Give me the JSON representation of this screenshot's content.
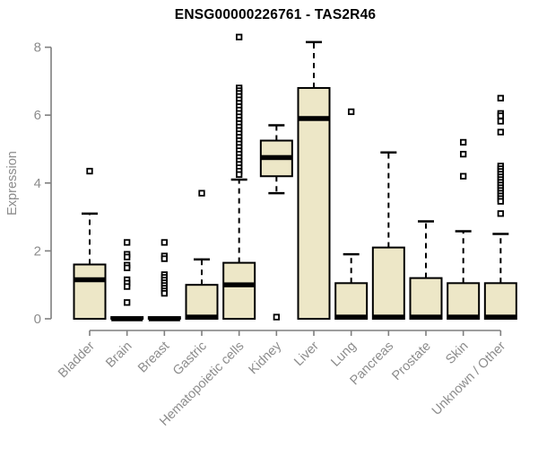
{
  "title": "ENSG00000226761 - TAS2R46",
  "colors": {
    "background": "#ffffff",
    "box_fill": "#ede7c7",
    "box_stroke": "#000000",
    "median": "#000000",
    "whisker": "#000000",
    "outlier_fill": "#ffffff",
    "outlier_stroke": "#000000",
    "axis": "#7f7f7f",
    "tick_label": "#8c8c8c",
    "title_color": "#000000"
  },
  "chart_data": {
    "type": "boxplot",
    "title": "ENSG00000226761 - TAS2R46",
    "xlabel": "",
    "ylabel": "Expression",
    "ylim": [
      0,
      8.5
    ],
    "yticks": [
      0,
      2,
      4,
      6,
      8
    ],
    "grid": false,
    "categories": [
      "Bladder",
      "Brain",
      "Breast",
      "Gastric",
      "Hematopoietic cells",
      "Kidney",
      "Liver",
      "Lung",
      "Pancreas",
      "Prostate",
      "Skin",
      "Unknown / Other"
    ],
    "series": [
      {
        "name": "Bladder",
        "q1": 0,
        "median": 1.15,
        "q3": 1.6,
        "whisker_low": 0,
        "whisker_high": 3.1,
        "outliers": [
          4.35
        ]
      },
      {
        "name": "Brain",
        "q1": 0,
        "median": 0,
        "q3": 0.05,
        "whisker_low": 0,
        "whisker_high": 0.05,
        "outliers": [
          2.25,
          1.9,
          1.82,
          1.58,
          1.5,
          1.15,
          1.05,
          0.95,
          0.48
        ]
      },
      {
        "name": "Breast",
        "q1": 0,
        "median": 0,
        "q3": 0.05,
        "whisker_low": 0,
        "whisker_high": 0.05,
        "outliers": [
          2.25,
          1.85,
          1.77,
          1.3,
          1.22,
          1.14,
          1.06,
          0.98,
          0.9,
          0.82,
          0.75
        ]
      },
      {
        "name": "Gastric",
        "q1": 0,
        "median": 0.05,
        "q3": 1.0,
        "whisker_low": 0,
        "whisker_high": 1.75,
        "outliers": [
          3.7
        ]
      },
      {
        "name": "Hematopoietic cells",
        "q1": 0,
        "median": 1.0,
        "q3": 1.65,
        "whisker_low": 0,
        "whisker_high": 4.1,
        "outliers": [
          8.3,
          6.8,
          6.72,
          6.64,
          6.55,
          6.45,
          6.35,
          6.25,
          6.15,
          6.05,
          5.95,
          5.85,
          5.75,
          5.65,
          5.55,
          5.45,
          5.35,
          5.25,
          5.15,
          5.05,
          4.95,
          4.85,
          4.75,
          4.65,
          4.55,
          4.45,
          4.35,
          4.25
        ]
      },
      {
        "name": "Kidney",
        "q1": 4.2,
        "median": 4.75,
        "q3": 5.25,
        "whisker_low": 3.7,
        "whisker_high": 5.7,
        "outliers": [
          0.05
        ]
      },
      {
        "name": "Liver",
        "q1": 0,
        "median": 5.9,
        "q3": 6.8,
        "whisker_low": 0,
        "whisker_high": 8.15,
        "outliers": []
      },
      {
        "name": "Lung",
        "q1": 0,
        "median": 0.05,
        "q3": 1.05,
        "whisker_low": 0,
        "whisker_high": 1.9,
        "outliers": [
          6.1
        ]
      },
      {
        "name": "Pancreas",
        "q1": 0,
        "median": 0.05,
        "q3": 2.1,
        "whisker_low": 0,
        "whisker_high": 4.9,
        "outliers": []
      },
      {
        "name": "Prostate",
        "q1": 0,
        "median": 0.05,
        "q3": 1.2,
        "whisker_low": 0,
        "whisker_high": 2.87,
        "outliers": []
      },
      {
        "name": "Skin",
        "q1": 0,
        "median": 0.05,
        "q3": 1.05,
        "whisker_low": 0,
        "whisker_high": 2.58,
        "outliers": [
          5.2,
          4.85,
          4.2
        ]
      },
      {
        "name": "Unknown / Other",
        "q1": 0,
        "median": 0.05,
        "q3": 1.05,
        "whisker_low": 0,
        "whisker_high": 2.5,
        "outliers": [
          6.5,
          6.05,
          5.98,
          5.82,
          5.5,
          4.5,
          4.42,
          4.34,
          4.26,
          4.18,
          4.1,
          4.02,
          3.94,
          3.86,
          3.78,
          3.7,
          3.62,
          3.54,
          3.46,
          3.1
        ]
      }
    ]
  }
}
